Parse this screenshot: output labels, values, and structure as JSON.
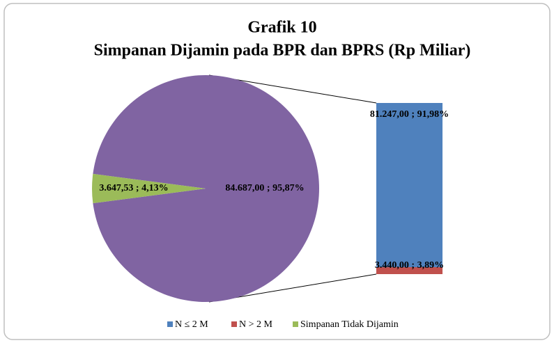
{
  "chart_data": {
    "type": "pie",
    "title": "Grafik 10",
    "subtitle": "Simpanan Dijamin pada BPR dan BPRS (Rp Miliar)",
    "categories": [
      null,
      "Simpanan Tidak Dijamin"
    ],
    "values": [
      84687.0,
      3647.53
    ],
    "value_labels": [
      "84.687,00 ; 95,87%",
      "3.647,53 ; 4,13%"
    ],
    "colors": [
      "#8064a2",
      "#9bbb59"
    ],
    "breakout": {
      "categories": [
        "N ≤ 2 M",
        "N > 2 M"
      ],
      "values": [
        81247.0,
        3440.0
      ],
      "value_labels": [
        "81.247,00 ; 91,98%",
        "3.440,00 ; 3,89%"
      ],
      "colors": [
        "#4f81bd",
        "#c0504d"
      ]
    },
    "legend": "bottom"
  }
}
